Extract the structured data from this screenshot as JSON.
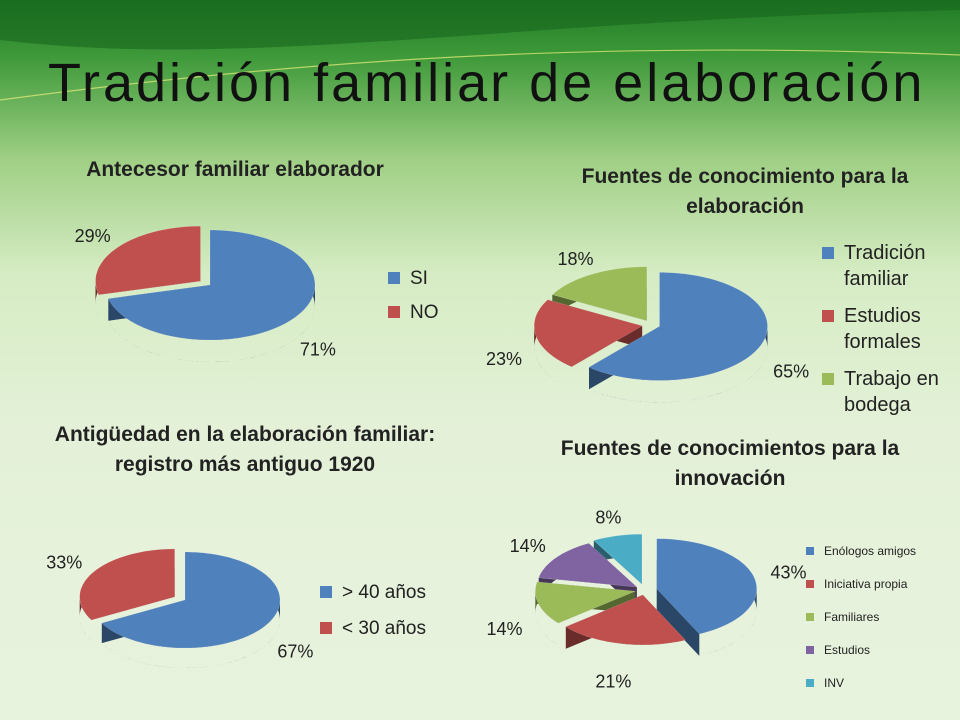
{
  "title": "Tradición familiar de elaboración",
  "chart_data": [
    {
      "type": "pie",
      "title": "Antecesor familiar elaborador",
      "categories": [
        "SI",
        "NO"
      ],
      "values": [
        71,
        29
      ],
      "value_labels": [
        "71%",
        "29%"
      ],
      "colors": [
        "#4f81bd",
        "#c0504d"
      ]
    },
    {
      "type": "pie",
      "title": "Fuentes de conocimiento para la elaboración",
      "categories": [
        "Tradición familiar",
        "Estudios formales",
        "Trabajo en bodega"
      ],
      "values": [
        65,
        23,
        18
      ],
      "value_labels": [
        "65%",
        "23%",
        "18%"
      ],
      "colors": [
        "#4f81bd",
        "#c0504d",
        "#9bbb59"
      ]
    },
    {
      "type": "pie",
      "title": "Antigüedad en la elaboración familiar: registro más antiguo 1920",
      "categories": [
        "> 40 años",
        "< 30 años"
      ],
      "values": [
        67,
        33
      ],
      "value_labels": [
        "67%",
        "33%"
      ],
      "colors": [
        "#4f81bd",
        "#c0504d"
      ]
    },
    {
      "type": "pie",
      "title": "Fuentes de conocimientos para la innovación",
      "categories": [
        "Enólogos amigos",
        "Iniciativa propia",
        "Familiares",
        "Estudios",
        "INV"
      ],
      "values": [
        43,
        21,
        14,
        14,
        8
      ],
      "value_labels": [
        "43%",
        "21%",
        "14%",
        "14%",
        "8%"
      ],
      "colors": [
        "#4f81bd",
        "#c0504d",
        "#9bbb59",
        "#8064a2",
        "#4bacc6"
      ]
    }
  ]
}
